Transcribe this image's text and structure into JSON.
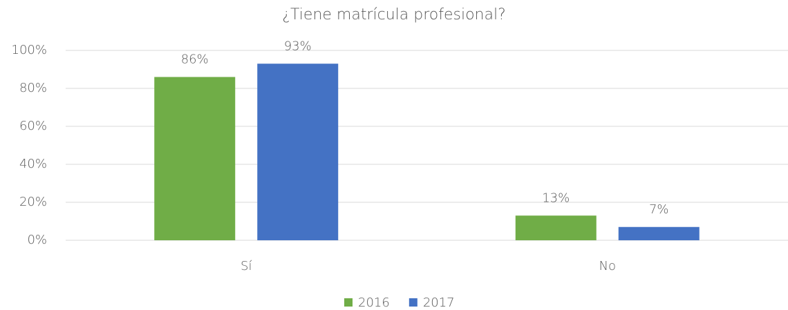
{
  "chart_data": {
    "type": "bar",
    "title": "¿Tiene matrícula profesional?",
    "categories": [
      "Sí",
      "No"
    ],
    "series": [
      {
        "name": "2016",
        "color": "#70ad47",
        "values": [
          86,
          13
        ],
        "value_labels": [
          "86%",
          "13%"
        ]
      },
      {
        "name": "2017",
        "color": "#4472c4",
        "values": [
          93,
          7
        ],
        "value_labels": [
          "93%",
          "7%"
        ]
      }
    ],
    "ylim": [
      0,
      100
    ],
    "yticks": [
      {
        "value": 0,
        "label": "0%"
      },
      {
        "value": 20,
        "label": "20%"
      },
      {
        "value": 40,
        "label": "40%"
      },
      {
        "value": 60,
        "label": "60%"
      },
      {
        "value": 80,
        "label": "80%"
      },
      {
        "value": 100,
        "label": "100%"
      }
    ],
    "grid": true,
    "legend": "bottom"
  }
}
